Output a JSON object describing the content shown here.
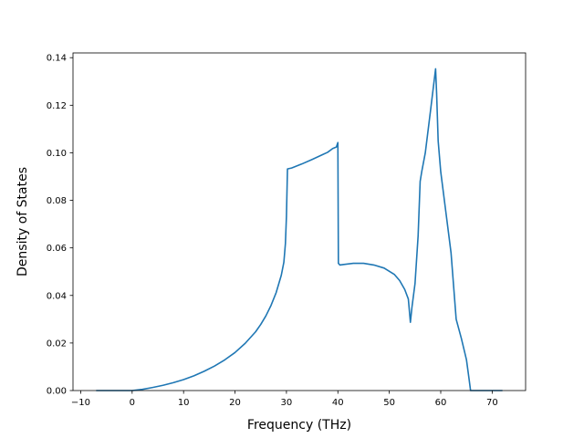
{
  "chart_data": {
    "type": "line",
    "title": "",
    "xlabel": "Frequency (THz)",
    "ylabel": "Density of States",
    "xlim": [
      -11.5,
      76.5
    ],
    "ylim": [
      0.0,
      0.142
    ],
    "grid": false,
    "xticks": [
      -10,
      0,
      10,
      20,
      30,
      40,
      50,
      60,
      70
    ],
    "xtick_labels": [
      "−10",
      "0",
      "10",
      "20",
      "30",
      "40",
      "50",
      "60",
      "70"
    ],
    "yticks": [
      0.0,
      0.02,
      0.04,
      0.06,
      0.08,
      0.1,
      0.12,
      0.14
    ],
    "ytick_labels": [
      "0.00",
      "0.02",
      "0.04",
      "0.06",
      "0.08",
      "0.10",
      "0.12",
      "0.14"
    ],
    "series": [
      {
        "color": "#1f77b4",
        "x": [
          -7,
          -3,
          0,
          2,
          4,
          6,
          8,
          10,
          12,
          14,
          16,
          18,
          20,
          22,
          24,
          25,
          26,
          27,
          28,
          29,
          29.5,
          29.8,
          30.0,
          30.2,
          31,
          33,
          35,
          37,
          38,
          39,
          39.7,
          40.0,
          40.1,
          40.4,
          41,
          43,
          45,
          47,
          49,
          51,
          52,
          53,
          53.7,
          54.1,
          54.4,
          55,
          55.6,
          56.0,
          56.3,
          57,
          58,
          59.0,
          59.2,
          59.5,
          60,
          61,
          62,
          63,
          64,
          65,
          65.5,
          65.8,
          66.5,
          70,
          72
        ],
        "y": [
          0.0,
          0.0,
          0.0,
          0.0005,
          0.0013,
          0.0022,
          0.0033,
          0.0046,
          0.0062,
          0.0081,
          0.0103,
          0.0129,
          0.016,
          0.0199,
          0.0247,
          0.0278,
          0.0314,
          0.0358,
          0.0412,
          0.0485,
          0.054,
          0.0618,
          0.0733,
          0.0932,
          0.0936,
          0.0953,
          0.0972,
          0.0992,
          0.1002,
          0.1018,
          0.1024,
          0.1043,
          0.0535,
          0.0528,
          0.053,
          0.0535,
          0.0535,
          0.0528,
          0.0515,
          0.0488,
          0.0463,
          0.0425,
          0.0385,
          0.0287,
          0.035,
          0.045,
          0.065,
          0.088,
          0.092,
          0.1,
          0.1175,
          0.1353,
          0.125,
          0.105,
          0.092,
          0.075,
          0.058,
          0.03,
          0.022,
          0.013,
          0.005,
          0.0,
          0.0,
          0.0,
          0.0
        ]
      }
    ]
  }
}
